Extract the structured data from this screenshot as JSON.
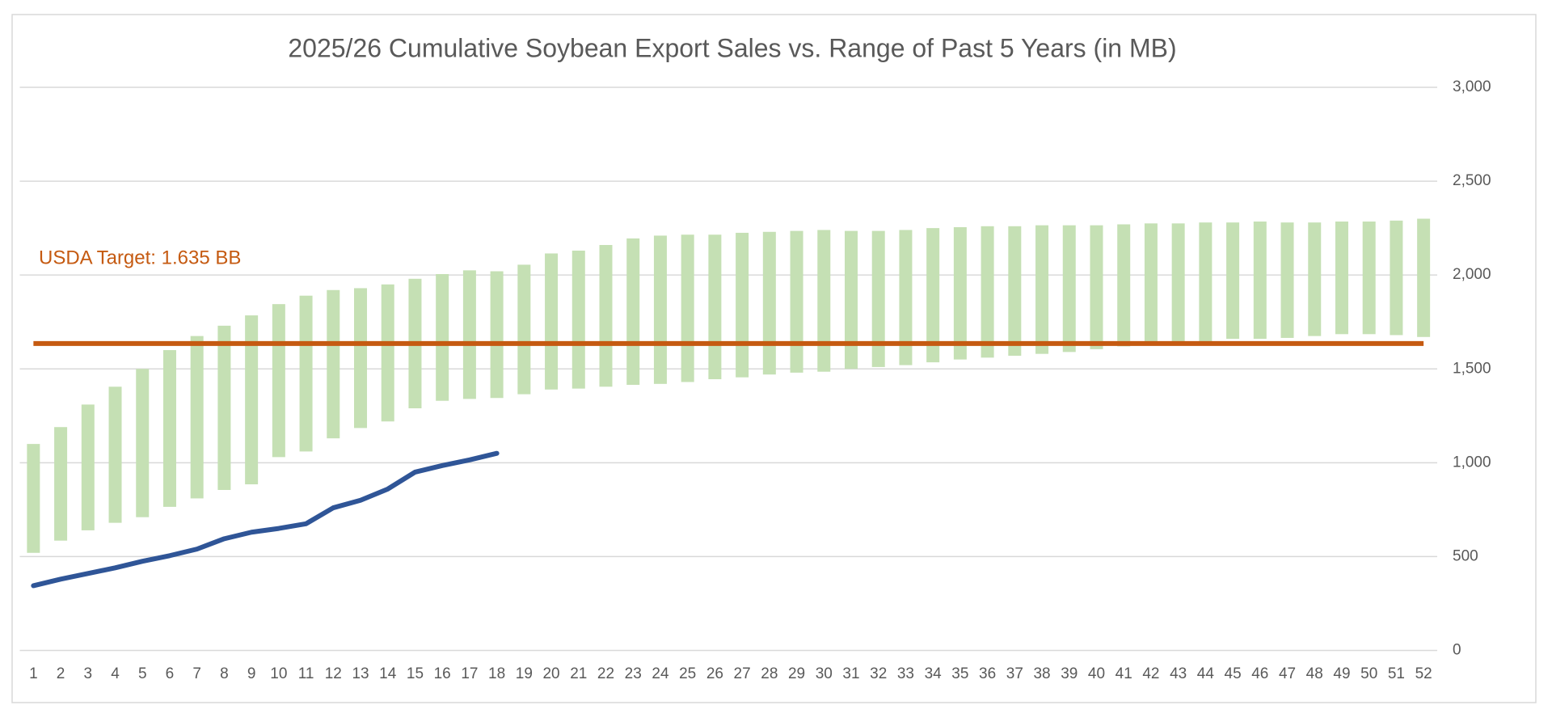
{
  "chart_data": {
    "type": "combo",
    "title": "2025/26 Cumulative Soybean Export Sales vs. Range of Past 5 Years (in MB)",
    "categories": [
      "1",
      "2",
      "3",
      "4",
      "5",
      "6",
      "7",
      "8",
      "9",
      "10",
      "11",
      "12",
      "13",
      "14",
      "15",
      "16",
      "17",
      "18",
      "19",
      "20",
      "21",
      "22",
      "23",
      "24",
      "25",
      "26",
      "27",
      "28",
      "29",
      "30",
      "31",
      "32",
      "33",
      "34",
      "35",
      "36",
      "37",
      "38",
      "39",
      "40",
      "41",
      "42",
      "43",
      "44",
      "45",
      "46",
      "47",
      "48",
      "49",
      "50",
      "51",
      "52"
    ],
    "series": [
      {
        "type": "range",
        "color": "#c5e0b4",
        "low": [
          520,
          585,
          640,
          680,
          710,
          765,
          810,
          855,
          885,
          1030,
          1060,
          1130,
          1185,
          1220,
          1290,
          1330,
          1340,
          1345,
          1365,
          1390,
          1395,
          1405,
          1415,
          1420,
          1430,
          1445,
          1455,
          1470,
          1480,
          1485,
          1500,
          1510,
          1520,
          1535,
          1550,
          1560,
          1570,
          1580,
          1590,
          1605,
          1620,
          1630,
          1640,
          1645,
          1660,
          1660,
          1665,
          1675,
          1685,
          1685,
          1680,
          1670
        ],
        "high": [
          1100,
          1190,
          1310,
          1405,
          1500,
          1600,
          1675,
          1730,
          1785,
          1845,
          1890,
          1920,
          1930,
          1950,
          1980,
          2005,
          2025,
          2020,
          2055,
          2115,
          2130,
          2160,
          2195,
          2210,
          2215,
          2215,
          2225,
          2230,
          2235,
          2240,
          2235,
          2235,
          2240,
          2250,
          2255,
          2260,
          2260,
          2265,
          2265,
          2265,
          2270,
          2275,
          2275,
          2280,
          2280,
          2285,
          2280,
          2280,
          2285,
          2285,
          2290,
          2300
        ]
      },
      {
        "type": "line",
        "color": "#2f5597",
        "values": [
          345,
          380,
          410,
          440,
          475,
          505,
          540,
          595,
          630,
          650,
          675,
          760,
          800,
          860,
          950,
          985,
          1015,
          1050,
          null,
          null,
          null,
          null,
          null,
          null,
          null,
          null,
          null,
          null,
          null,
          null,
          null,
          null,
          null,
          null,
          null,
          null,
          null,
          null,
          null,
          null,
          null,
          null,
          null,
          null,
          null,
          null,
          null,
          null,
          null,
          null,
          null,
          null
        ]
      }
    ],
    "reference_lines": [
      {
        "value": 1635,
        "label": "USDA Target: 1.635 BB",
        "color": "#c55a11"
      }
    ],
    "ylim": [
      0,
      3000
    ],
    "yticks": [
      0,
      500,
      {
        "value": 1000,
        "label": "1,000"
      },
      {
        "value": 1500,
        "label": "1,500"
      },
      {
        "value": 2000,
        "label": "2,000"
      },
      {
        "value": 2500,
        "label": "2,500"
      },
      {
        "value": 3000,
        "label": "3,000"
      }
    ],
    "grid": true
  }
}
